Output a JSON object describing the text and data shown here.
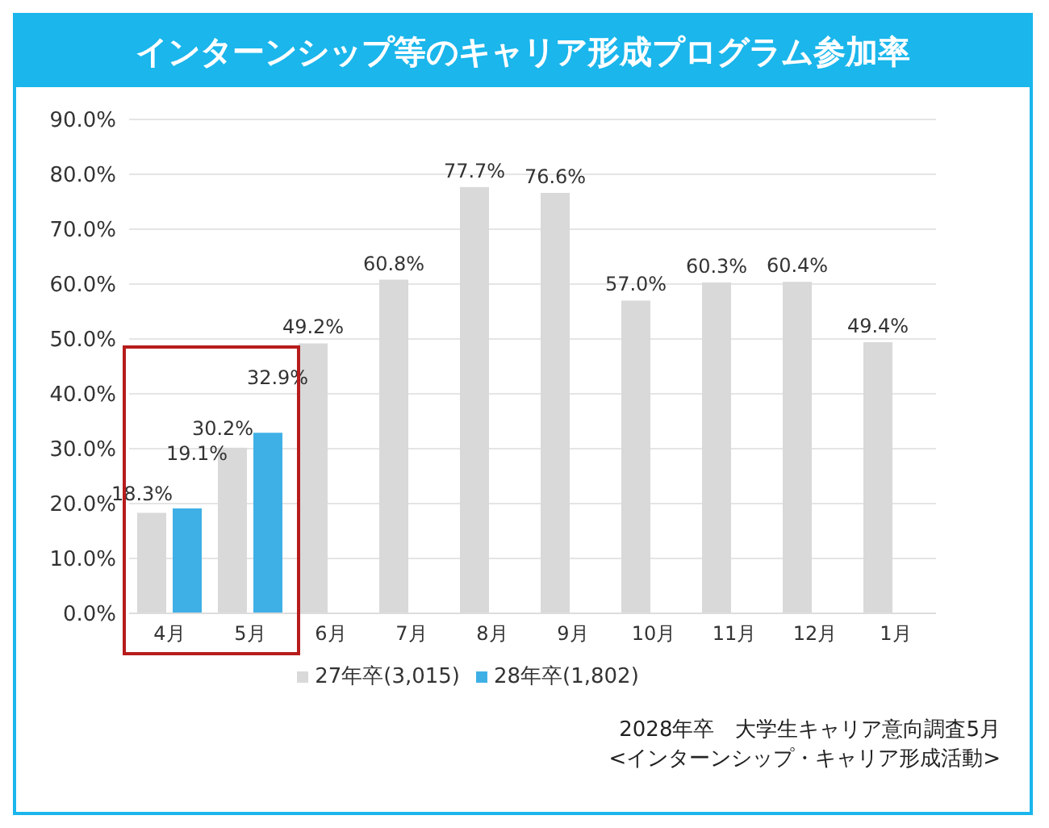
{
  "chart_data": {
    "type": "bar",
    "title": "インターンシップ等のキャリア形成プログラム参加率",
    "categories": [
      "4月",
      "5月",
      "6月",
      "7月",
      "8月",
      "9月",
      "10月",
      "11月",
      "12月",
      "1月"
    ],
    "series": [
      {
        "name": "27年卒(3,015)",
        "color": "#d9d9d9",
        "values": [
          18.3,
          30.2,
          49.2,
          60.8,
          77.7,
          76.6,
          57.0,
          60.3,
          60.4,
          49.4
        ],
        "value_labels": [
          "18.3%",
          "30.2%",
          "49.2%",
          "60.8%",
          "77.7%",
          "76.6%",
          "57.0%",
          "60.3%",
          "60.4%",
          "49.4%"
        ]
      },
      {
        "name": "28年卒(1,802)",
        "color": "#3fb0e6",
        "values": [
          19.1,
          32.9,
          null,
          null,
          null,
          null,
          null,
          null,
          null,
          null
        ],
        "value_labels": [
          "19.1%",
          "32.9%",
          null,
          null,
          null,
          null,
          null,
          null,
          null,
          null
        ]
      }
    ],
    "ylim": [
      0,
      90
    ],
    "yticks": [
      {
        "value": 0,
        "label": "0.0%"
      },
      {
        "value": 10,
        "label": "10.0%"
      },
      {
        "value": 20,
        "label": "20.0%"
      },
      {
        "value": 30,
        "label": "30.0%"
      },
      {
        "value": 40,
        "label": "40.0%"
      },
      {
        "value": 50,
        "label": "50.0%"
      },
      {
        "value": 60,
        "label": "60.0%"
      },
      {
        "value": 70,
        "label": "70.0%"
      },
      {
        "value": 80,
        "label": "80.0%"
      },
      {
        "value": 90,
        "label": "90.0%"
      }
    ],
    "grid": "y",
    "legend": "bottom",
    "annotations": [
      "2028年卒　大学生キャリア意向調査5月",
      "<インターンシップ・キャリア形成活動>"
    ]
  }
}
